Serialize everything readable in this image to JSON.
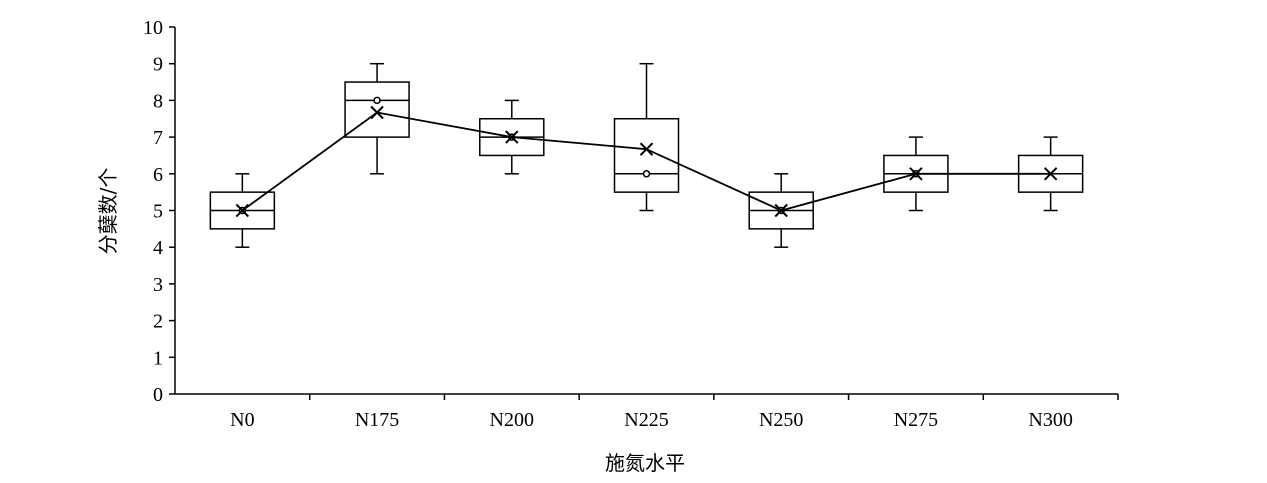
{
  "chart_data": {
    "type": "box",
    "title": "",
    "xlabel": "施氮水平",
    "ylabel": "分蘖数/个",
    "ylim": [
      0,
      10
    ],
    "yticks": [
      "0",
      "1",
      "2",
      "3",
      "4",
      "5",
      "6",
      "7",
      "8",
      "9",
      "10"
    ],
    "categories": [
      "N0",
      "N175",
      "N200",
      "N225",
      "N250",
      "N275",
      "N300"
    ],
    "boxes": [
      {
        "category": "N0",
        "min": 4,
        "q1": 4.5,
        "median": 5,
        "q3": 5.5,
        "max": 6,
        "mean": 5,
        "points": [
          5
        ]
      },
      {
        "category": "N175",
        "min": 6,
        "q1": 7,
        "median": 8,
        "q3": 8.5,
        "max": 9,
        "mean": 7.67,
        "points": [
          8
        ]
      },
      {
        "category": "N200",
        "min": 6,
        "q1": 6.5,
        "median": 7,
        "q3": 7.5,
        "max": 8,
        "mean": 7,
        "points": [
          7
        ]
      },
      {
        "category": "N225",
        "min": 5,
        "q1": 5.5,
        "median": 6,
        "q3": 7.5,
        "max": 9,
        "mean": 6.67,
        "points": [
          6
        ]
      },
      {
        "category": "N250",
        "min": 4,
        "q1": 4.5,
        "median": 5,
        "q3": 5.5,
        "max": 6,
        "mean": 5,
        "points": [
          5
        ]
      },
      {
        "category": "N275",
        "min": 5,
        "q1": 5.5,
        "median": 6,
        "q3": 6.5,
        "max": 7,
        "mean": 6,
        "points": [
          6
        ]
      },
      {
        "category": "N300",
        "min": 5,
        "q1": 5.5,
        "median": 6,
        "q3": 6.5,
        "max": 7,
        "mean": 6,
        "points": []
      }
    ],
    "mean_line": true,
    "grid": false
  }
}
